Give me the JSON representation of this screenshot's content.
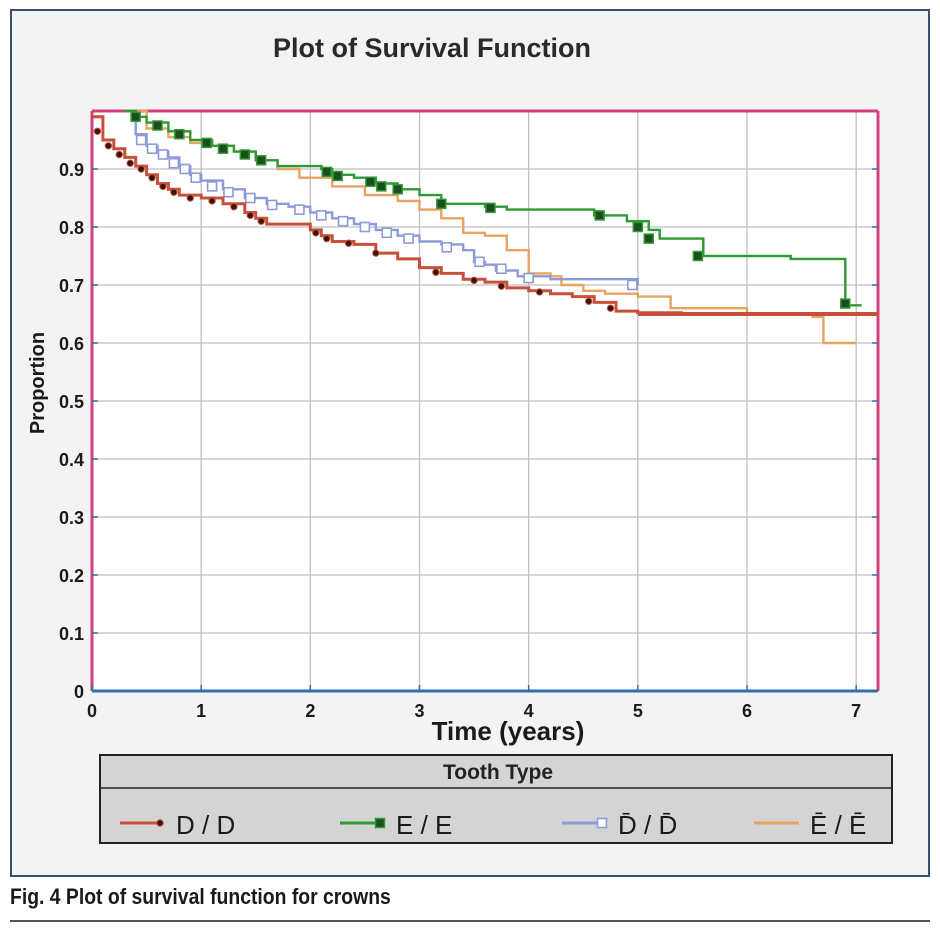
{
  "figure": {
    "caption": "Fig. 4  Plot of survival function for crowns"
  },
  "chart_data": {
    "type": "line",
    "title": "Plot of Survival Function",
    "xlabel": "Time (years)",
    "ylabel": "Proportion",
    "xlim": [
      0,
      7.2
    ],
    "ylim": [
      0,
      1.0
    ],
    "x_ticks": [
      "0",
      "1",
      "2",
      "3",
      "4",
      "5",
      "6",
      "7"
    ],
    "y_ticks": [
      "0",
      "0.1",
      "0.2",
      "0.3",
      "0.4",
      "0.5",
      "0.6",
      "0.7",
      "0.8",
      "0.9"
    ],
    "grid": true,
    "legend": {
      "title": "Tooth Type",
      "placement": "bottom"
    },
    "series": [
      {
        "name": "D / D",
        "color": "#c8503a",
        "marker": "dot",
        "points": [
          [
            0,
            0.99
          ],
          [
            0.1,
            0.95
          ],
          [
            0.2,
            0.935
          ],
          [
            0.3,
            0.92
          ],
          [
            0.4,
            0.905
          ],
          [
            0.5,
            0.89
          ],
          [
            0.6,
            0.875
          ],
          [
            0.7,
            0.865
          ],
          [
            0.8,
            0.855
          ],
          [
            1.0,
            0.85
          ],
          [
            1.2,
            0.84
          ],
          [
            1.4,
            0.825
          ],
          [
            1.5,
            0.815
          ],
          [
            1.6,
            0.805
          ],
          [
            1.8,
            0.805
          ],
          [
            2.0,
            0.795
          ],
          [
            2.1,
            0.785
          ],
          [
            2.2,
            0.775
          ],
          [
            2.4,
            0.77
          ],
          [
            2.6,
            0.755
          ],
          [
            2.8,
            0.745
          ],
          [
            3.0,
            0.73
          ],
          [
            3.2,
            0.72
          ],
          [
            3.4,
            0.71
          ],
          [
            3.6,
            0.705
          ],
          [
            3.8,
            0.695
          ],
          [
            4.0,
            0.69
          ],
          [
            4.2,
            0.685
          ],
          [
            4.4,
            0.68
          ],
          [
            4.6,
            0.67
          ],
          [
            4.8,
            0.655
          ],
          [
            5.0,
            0.652
          ],
          [
            5.4,
            0.65
          ],
          [
            6.0,
            0.65
          ],
          [
            7.2,
            0.65
          ]
        ],
        "markers": [
          [
            0.05,
            0.965
          ],
          [
            0.15,
            0.94
          ],
          [
            0.25,
            0.925
          ],
          [
            0.35,
            0.91
          ],
          [
            0.45,
            0.9
          ],
          [
            0.55,
            0.885
          ],
          [
            0.65,
            0.87
          ],
          [
            0.75,
            0.86
          ],
          [
            0.9,
            0.85
          ],
          [
            1.1,
            0.845
          ],
          [
            1.3,
            0.835
          ],
          [
            1.45,
            0.82
          ],
          [
            1.55,
            0.81
          ],
          [
            2.05,
            0.79
          ],
          [
            2.15,
            0.78
          ],
          [
            2.35,
            0.772
          ],
          [
            2.6,
            0.755
          ],
          [
            3.15,
            0.722
          ],
          [
            3.5,
            0.708
          ],
          [
            3.75,
            0.698
          ],
          [
            4.1,
            0.688
          ],
          [
            4.55,
            0.672
          ],
          [
            4.75,
            0.66
          ]
        ]
      },
      {
        "name": "E / E",
        "color": "#2e9a35",
        "marker": "filled-square",
        "points": [
          [
            0.3,
            1.0
          ],
          [
            0.4,
            0.99
          ],
          [
            0.5,
            0.98
          ],
          [
            0.7,
            0.965
          ],
          [
            0.9,
            0.95
          ],
          [
            1.1,
            0.94
          ],
          [
            1.3,
            0.93
          ],
          [
            1.5,
            0.915
          ],
          [
            1.7,
            0.905
          ],
          [
            2.1,
            0.9
          ],
          [
            2.2,
            0.89
          ],
          [
            2.4,
            0.885
          ],
          [
            2.6,
            0.875
          ],
          [
            2.8,
            0.865
          ],
          [
            3.0,
            0.855
          ],
          [
            3.2,
            0.84
          ],
          [
            3.6,
            0.835
          ],
          [
            3.8,
            0.83
          ],
          [
            4.2,
            0.83
          ],
          [
            4.6,
            0.82
          ],
          [
            4.9,
            0.81
          ],
          [
            5.1,
            0.795
          ],
          [
            5.2,
            0.78
          ],
          [
            5.5,
            0.78
          ],
          [
            5.6,
            0.75
          ],
          [
            6.2,
            0.75
          ],
          [
            6.4,
            0.745
          ],
          [
            6.8,
            0.745
          ],
          [
            6.9,
            0.665
          ],
          [
            7.05,
            0.665
          ]
        ],
        "markers": [
          [
            0.4,
            0.99
          ],
          [
            0.6,
            0.975
          ],
          [
            0.8,
            0.96
          ],
          [
            1.05,
            0.945
          ],
          [
            1.2,
            0.935
          ],
          [
            1.4,
            0.925
          ],
          [
            1.55,
            0.915
          ],
          [
            2.15,
            0.895
          ],
          [
            2.25,
            0.888
          ],
          [
            2.55,
            0.878
          ],
          [
            2.65,
            0.87
          ],
          [
            2.8,
            0.865
          ],
          [
            3.2,
            0.84
          ],
          [
            3.65,
            0.833
          ],
          [
            4.65,
            0.82
          ],
          [
            5.0,
            0.8
          ],
          [
            5.1,
            0.78
          ],
          [
            5.55,
            0.75
          ],
          [
            6.9,
            0.668
          ]
        ]
      },
      {
        "name": "D̄ / D̄",
        "color": "#8c9bd8",
        "marker": "open-square",
        "points": [
          [
            0.3,
            1.0
          ],
          [
            0.4,
            0.96
          ],
          [
            0.5,
            0.94
          ],
          [
            0.6,
            0.93
          ],
          [
            0.7,
            0.92
          ],
          [
            0.8,
            0.905
          ],
          [
            0.9,
            0.89
          ],
          [
            1.0,
            0.88
          ],
          [
            1.2,
            0.865
          ],
          [
            1.4,
            0.85
          ],
          [
            1.6,
            0.84
          ],
          [
            1.8,
            0.835
          ],
          [
            2.0,
            0.825
          ],
          [
            2.2,
            0.815
          ],
          [
            2.4,
            0.805
          ],
          [
            2.6,
            0.795
          ],
          [
            2.8,
            0.785
          ],
          [
            3.0,
            0.775
          ],
          [
            3.2,
            0.77
          ],
          [
            3.4,
            0.76
          ],
          [
            3.5,
            0.74
          ],
          [
            3.6,
            0.735
          ],
          [
            3.7,
            0.725
          ],
          [
            3.9,
            0.715
          ],
          [
            4.2,
            0.71
          ],
          [
            4.6,
            0.71
          ],
          [
            5.0,
            0.7
          ]
        ],
        "markers": [
          [
            0.45,
            0.95
          ],
          [
            0.55,
            0.935
          ],
          [
            0.65,
            0.925
          ],
          [
            0.75,
            0.91
          ],
          [
            0.85,
            0.9
          ],
          [
            0.95,
            0.885
          ],
          [
            1.1,
            0.87
          ],
          [
            1.25,
            0.86
          ],
          [
            1.45,
            0.85
          ],
          [
            1.65,
            0.838
          ],
          [
            1.9,
            0.83
          ],
          [
            2.1,
            0.82
          ],
          [
            2.3,
            0.81
          ],
          [
            2.5,
            0.8
          ],
          [
            2.7,
            0.79
          ],
          [
            2.9,
            0.78
          ],
          [
            3.25,
            0.765
          ],
          [
            3.55,
            0.74
          ],
          [
            3.75,
            0.728
          ],
          [
            4.0,
            0.712
          ],
          [
            4.95,
            0.7
          ]
        ]
      },
      {
        "name": "Ē / Ē",
        "color": "#e8a45e",
        "marker": "dash",
        "points": [
          [
            0.3,
            1.0
          ],
          [
            0.5,
            0.97
          ],
          [
            0.7,
            0.955
          ],
          [
            0.9,
            0.945
          ],
          [
            1.1,
            0.94
          ],
          [
            1.3,
            0.93
          ],
          [
            1.5,
            0.915
          ],
          [
            1.7,
            0.9
          ],
          [
            1.9,
            0.885
          ],
          [
            2.2,
            0.87
          ],
          [
            2.5,
            0.855
          ],
          [
            2.8,
            0.845
          ],
          [
            3.0,
            0.83
          ],
          [
            3.2,
            0.815
          ],
          [
            3.4,
            0.79
          ],
          [
            3.6,
            0.785
          ],
          [
            3.8,
            0.76
          ],
          [
            4.0,
            0.72
          ],
          [
            4.2,
            0.715
          ],
          [
            4.3,
            0.7
          ],
          [
            4.5,
            0.69
          ],
          [
            4.7,
            0.685
          ],
          [
            5.0,
            0.68
          ],
          [
            5.3,
            0.66
          ],
          [
            5.6,
            0.66
          ],
          [
            6.0,
            0.65
          ],
          [
            6.6,
            0.645
          ],
          [
            6.7,
            0.6
          ],
          [
            7.0,
            0.6
          ]
        ],
        "markers": []
      }
    ]
  }
}
